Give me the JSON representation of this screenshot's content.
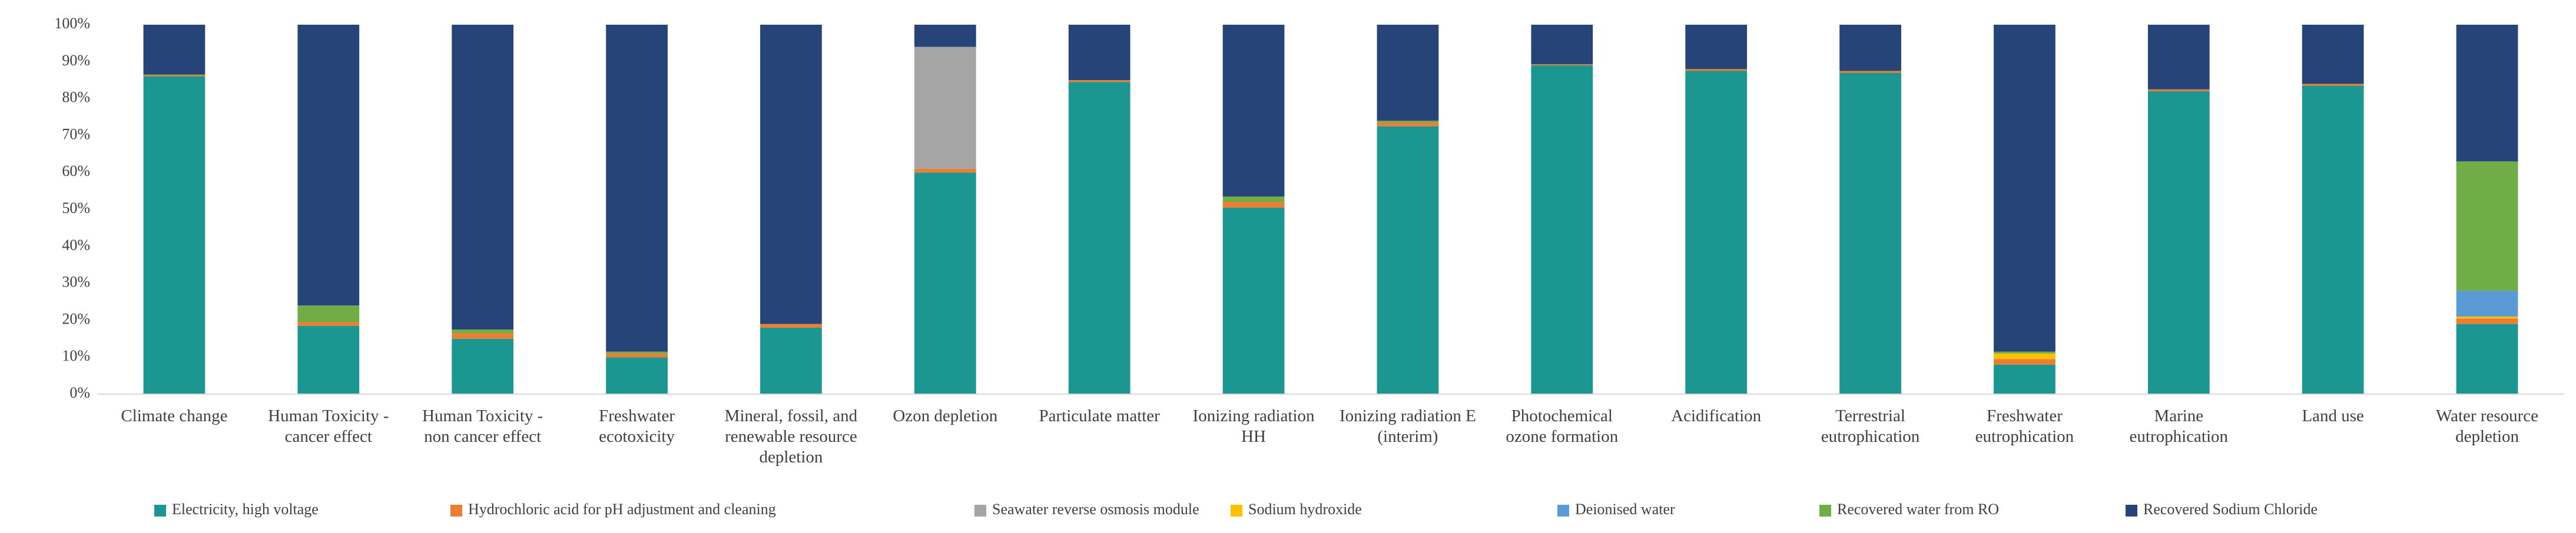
{
  "chart_data": {
    "type": "stacked_bar_100",
    "categories": [
      "Climate change",
      "Human Toxicity - cancer effect",
      "Human Toxicity - non cancer effect",
      "Freshwater ecotoxicity",
      "Mineral, fossil, and renewable resource depletion",
      "Ozon depletion",
      "Particulate matter",
      "Ionizing radiation HH",
      "Ionizing radiation E (interim)",
      "Photochemical ozone formation",
      "Acidification",
      "Terrestrial eutrophication",
      "Freshwater eutrophication",
      "Marine eutrophication",
      "Land use",
      "Water resource depletion"
    ],
    "series": [
      {
        "name": "Electricity, high voltage",
        "color": "#1b9690",
        "values": [
          86,
          18.5,
          15,
          10,
          18,
          60,
          84.5,
          50.5,
          72.5,
          89,
          87.5,
          87,
          8,
          82,
          83.5,
          19
        ]
      },
      {
        "name": "Hydrochloric acid for pH adjustment and cleaning",
        "color": "#ed7d31",
        "values": [
          0.3,
          1,
          1.5,
          1,
          1,
          1,
          0.5,
          1.5,
          1,
          0.3,
          0.5,
          0.5,
          1.5,
          0.5,
          0.5,
          1.5
        ]
      },
      {
        "name": "Seawater reverse osmosis module",
        "color": "#a5a5a5",
        "values": [
          0,
          0,
          0,
          0,
          0,
          33,
          0,
          0,
          0,
          0,
          0,
          0,
          0,
          0,
          0,
          0
        ]
      },
      {
        "name": "Sodium hydroxide",
        "color": "#ffc000",
        "values": [
          0,
          0,
          0,
          0,
          0,
          0,
          0,
          0,
          0,
          0,
          0,
          0,
          1.5,
          0,
          0,
          0.5
        ]
      },
      {
        "name": "Deionised water",
        "color": "#5b9bd5",
        "values": [
          0,
          0,
          0,
          0,
          0,
          0,
          0,
          0,
          0,
          0,
          0,
          0,
          0,
          0,
          0,
          7
        ]
      },
      {
        "name": "Recovered water from RO",
        "color": "#70ad47",
        "values": [
          0.2,
          4.5,
          1,
          0.5,
          0,
          0,
          0,
          1.5,
          0.5,
          0,
          0,
          0,
          0.5,
          0,
          0,
          35
        ]
      },
      {
        "name": "Recovered Sodium Chloride",
        "color": "#264478",
        "values": [
          13.5,
          76,
          82.5,
          88.5,
          81,
          6,
          15,
          46.5,
          26,
          10.7,
          12,
          12.5,
          88.5,
          17.5,
          16,
          37
        ]
      }
    ],
    "ylim": [
      0,
      100
    ],
    "yticks": [
      {
        "value": 0,
        "label": "0%"
      },
      {
        "value": 10,
        "label": "10%"
      },
      {
        "value": 20,
        "label": "20%"
      },
      {
        "value": 30,
        "label": "30%"
      },
      {
        "value": 40,
        "label": "40%"
      },
      {
        "value": 50,
        "label": "50%"
      },
      {
        "value": 60,
        "label": "60%"
      },
      {
        "value": 70,
        "label": "70%"
      },
      {
        "value": 80,
        "label": "80%"
      },
      {
        "value": 90,
        "label": "90%"
      },
      {
        "value": 100,
        "label": "100%"
      }
    ],
    "grid": false,
    "legend": "bottom"
  }
}
